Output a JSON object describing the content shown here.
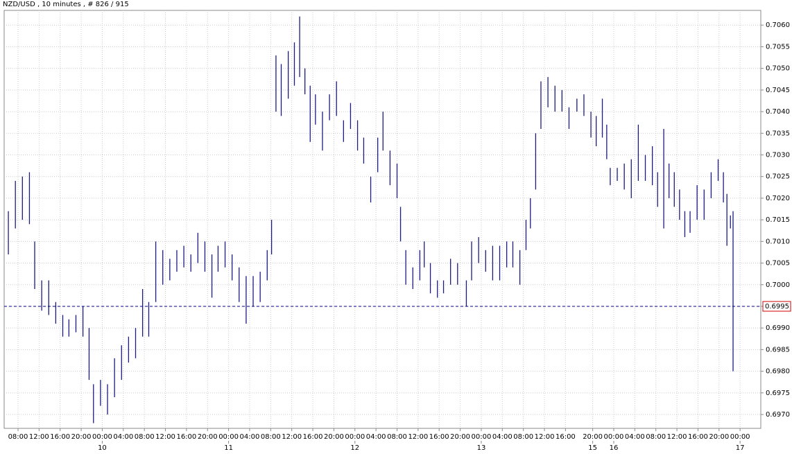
{
  "chart_data": {
    "type": "hilo",
    "title": "NZD/USD , 10 minutes , # 826 / 915",
    "color": "#1a1a80",
    "grid": true,
    "xlim": [
      -15.8,
      846.6
    ],
    "ylim": [
      0.69668,
      0.70634
    ],
    "yticks": [
      {
        "value": 0.706,
        "label": "0.7060"
      },
      0.7055,
      {
        "value": 0.705,
        "label": "0.7050"
      },
      0.7045,
      {
        "value": 0.704,
        "label": "0.7040"
      },
      0.7035,
      {
        "value": 0.703,
        "label": "0.7030"
      },
      0.7025,
      {
        "value": 0.702,
        "label": "0.7020"
      },
      0.7015,
      {
        "value": 0.701,
        "label": "0.7010"
      },
      0.7005,
      {
        "value": 0.7,
        "label": "0.7000"
      },
      0.6995,
      {
        "value": 0.699,
        "label": "0.6990"
      },
      0.6985,
      {
        "value": 0.698,
        "label": "0.6980"
      },
      0.6975,
      {
        "value": 0.697,
        "label": "0.6970"
      }
    ],
    "xticks": [
      {
        "value": 0,
        "label": "08:00"
      },
      {
        "value": 24,
        "label": "12:00"
      },
      {
        "value": 48,
        "label": "16:00"
      },
      {
        "value": 72,
        "label": "20:00"
      },
      {
        "value": 96,
        "label": "00:00"
      },
      {
        "value": 120,
        "label": "04:00"
      },
      {
        "value": 144,
        "label": "08:00"
      },
      {
        "value": 168,
        "label": "12:00"
      },
      {
        "value": 192,
        "label": "16:00"
      },
      {
        "value": 216,
        "label": "20:00"
      },
      {
        "value": 240,
        "label": "00:00"
      },
      {
        "value": 264,
        "label": "04:00"
      },
      {
        "value": 288,
        "label": "08:00"
      },
      {
        "value": 312,
        "label": "12:00"
      },
      {
        "value": 336,
        "label": "16:00"
      },
      {
        "value": 360,
        "label": "20:00"
      },
      {
        "value": 384,
        "label": "00:00"
      },
      {
        "value": 408,
        "label": "04:00"
      },
      {
        "value": 432,
        "label": "08:00"
      },
      {
        "value": 456,
        "label": "12:00"
      },
      {
        "value": 480,
        "label": "16:00"
      },
      {
        "value": 504,
        "label": "20:00"
      },
      {
        "value": 528,
        "label": "00:00"
      },
      {
        "value": 552,
        "label": "04:00"
      },
      {
        "value": 576,
        "label": "08:00"
      },
      {
        "value": 600,
        "label": "12:00"
      },
      {
        "value": 624,
        "label": "16:00"
      },
      {
        "value": 655,
        "label": "20:00"
      },
      {
        "value": 679,
        "label": "00:00"
      },
      {
        "value": 703,
        "label": "04:00"
      },
      {
        "value": 727,
        "label": "08:00"
      },
      {
        "value": 751,
        "label": "12:00"
      },
      {
        "value": 775,
        "label": "16:00"
      },
      {
        "value": 799,
        "label": "20:00"
      },
      {
        "value": 823,
        "label": "00:00"
      }
    ],
    "day_ticks": [
      {
        "value": 96,
        "label": "10"
      },
      {
        "value": 240,
        "label": "11"
      },
      {
        "value": 384,
        "label": "12"
      },
      {
        "value": 528,
        "label": "13"
      },
      {
        "value": 655,
        "label": "15"
      },
      {
        "value": 679,
        "label": "16"
      },
      {
        "value": 823,
        "label": "17"
      }
    ],
    "last_price": 0.6995,
    "x": [
      -11,
      -3,
      5,
      13,
      19,
      27,
      35,
      43,
      51,
      58,
      66,
      74,
      81,
      86,
      94,
      102,
      110,
      118,
      126,
      134,
      142,
      149,
      157,
      165,
      173,
      181,
      189,
      197,
      205,
      213,
      221,
      228,
      236,
      244,
      252,
      260,
      268,
      276,
      284,
      289,
      294,
      300,
      308,
      315,
      321,
      327,
      333,
      339,
      347,
      355,
      363,
      371,
      379,
      387,
      394,
      402,
      410,
      416,
      424,
      432,
      436,
      442,
      450,
      458,
      463,
      470,
      478,
      485,
      493,
      501,
      511,
      517,
      525,
      533,
      541,
      549,
      557,
      564,
      572,
      579,
      584,
      590,
      596,
      604,
      612,
      620,
      628,
      637,
      645,
      653,
      659,
      666,
      671,
      675,
      683,
      691,
      699,
      707,
      715,
      723,
      729,
      736,
      742,
      748,
      754,
      760,
      766,
      774,
      782,
      790,
      798,
      804,
      808,
      812,
      815
    ],
    "high": [
      0.7017,
      0.7024,
      0.7025,
      0.7026,
      0.701,
      0.7001,
      0.7001,
      0.6996,
      0.6993,
      0.6992,
      0.6993,
      0.6995,
      0.699,
      0.6977,
      0.6978,
      0.6977,
      0.6983,
      0.6986,
      0.6988,
      0.699,
      0.6999,
      0.6996,
      0.701,
      0.7008,
      0.7006,
      0.7008,
      0.7009,
      0.7007,
      0.7012,
      0.701,
      0.7007,
      0.7009,
      0.701,
      0.7007,
      0.7004,
      0.7002,
      0.7002,
      0.7003,
      0.7008,
      0.7015,
      0.7053,
      0.7051,
      0.7054,
      0.7056,
      0.7062,
      0.705,
      0.7046,
      0.7044,
      0.704,
      0.7044,
      0.7047,
      0.7038,
      0.7042,
      0.7038,
      0.7034,
      0.7025,
      0.7034,
      0.704,
      0.7031,
      0.7028,
      0.7018,
      0.7008,
      0.7004,
      0.7008,
      0.701,
      0.7005,
      0.7001,
      0.7001,
      0.7006,
      0.7005,
      0.7001,
      0.701,
      0.7011,
      0.7008,
      0.7009,
      0.7009,
      0.701,
      0.701,
      0.7008,
      0.7015,
      0.702,
      0.7035,
      0.7047,
      0.7048,
      0.7046,
      0.7045,
      0.7041,
      0.7043,
      0.7044,
      0.704,
      0.7039,
      0.7043,
      0.7037,
      0.7027,
      0.7027,
      0.7028,
      0.7029,
      0.7037,
      0.703,
      0.7032,
      0.7026,
      0.7036,
      0.7028,
      0.7026,
      0.7022,
      0.7017,
      0.7017,
      0.7023,
      0.7022,
      0.7026,
      0.7029,
      0.7026,
      0.7021,
      0.7016,
      0.7017
    ],
    "low": [
      0.7007,
      0.7013,
      0.7015,
      0.7014,
      0.6999,
      0.6994,
      0.6993,
      0.6991,
      0.6988,
      0.6988,
      0.6989,
      0.6988,
      0.6978,
      0.6968,
      0.6972,
      0.697,
      0.6974,
      0.6978,
      0.6982,
      0.6983,
      0.6988,
      0.6988,
      0.6996,
      0.7,
      0.7001,
      0.7003,
      0.7004,
      0.7003,
      0.7005,
      0.7003,
      0.6997,
      0.7003,
      0.7004,
      0.7001,
      0.6996,
      0.6991,
      0.6995,
      0.6996,
      0.7001,
      0.7007,
      0.704,
      0.7039,
      0.7043,
      0.7046,
      0.7048,
      0.7044,
      0.7033,
      0.7037,
      0.7031,
      0.7038,
      0.7039,
      0.7033,
      0.7036,
      0.7031,
      0.7028,
      0.7019,
      0.7026,
      0.7031,
      0.7023,
      0.702,
      0.701,
      0.7,
      0.6999,
      0.7001,
      0.7004,
      0.6998,
      0.6997,
      0.6998,
      0.7,
      0.7,
      0.6995,
      0.7001,
      0.7005,
      0.7003,
      0.7001,
      0.7001,
      0.7004,
      0.7004,
      0.7,
      0.7008,
      0.7013,
      0.7022,
      0.7036,
      0.7041,
      0.704,
      0.704,
      0.7036,
      0.704,
      0.7039,
      0.7034,
      0.7032,
      0.7034,
      0.7029,
      0.7023,
      0.7024,
      0.7022,
      0.702,
      0.7024,
      0.7024,
      0.7023,
      0.7018,
      0.7013,
      0.702,
      0.7018,
      0.7015,
      0.7011,
      0.7012,
      0.7015,
      0.7015,
      0.702,
      0.7024,
      0.7019,
      0.7009,
      0.7013,
      0.698
    ]
  }
}
